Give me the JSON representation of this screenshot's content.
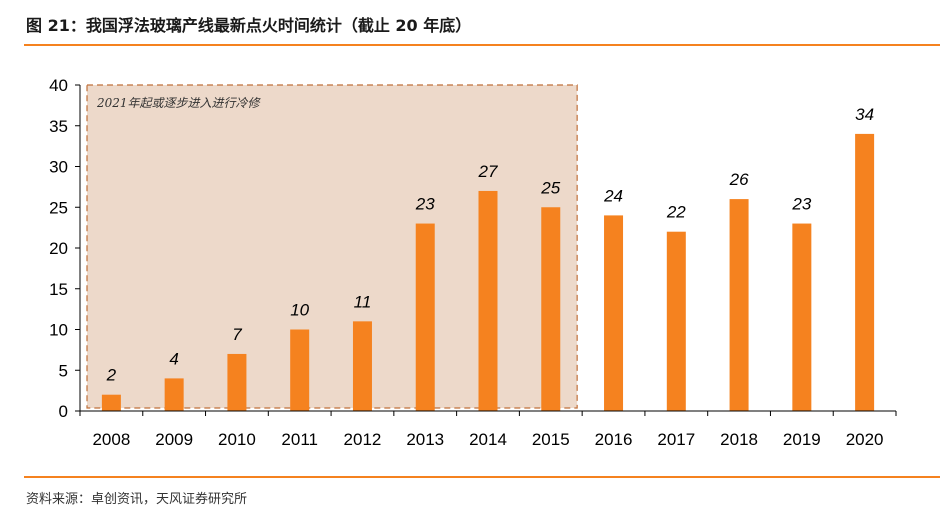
{
  "header": {
    "title": "图 21：我国浮法玻璃产线最新点火时间统计（截止 20 年底）"
  },
  "footer": {
    "source": "资料来源：卓创资讯，天风证券研究所"
  },
  "colors": {
    "bar": "#F5821F",
    "accent": "#F5821F",
    "shade_fill": "#EDD9CA",
    "shade_border": "#C0703A"
  },
  "chart_data": {
    "type": "bar",
    "categories": [
      "2008",
      "2009",
      "2010",
      "2011",
      "2012",
      "2013",
      "2014",
      "2015",
      "2016",
      "2017",
      "2018",
      "2019",
      "2020"
    ],
    "values": [
      2,
      4,
      7,
      10,
      11,
      23,
      27,
      25,
      24,
      22,
      26,
      23,
      34
    ],
    "ylim": [
      0,
      40
    ],
    "yticks": [
      0,
      5,
      10,
      15,
      20,
      25,
      30,
      35,
      40
    ],
    "title": "",
    "xlabel": "",
    "ylabel": "",
    "grid": false,
    "data_labels": true,
    "annotation": {
      "text": "2021年起或逐步进入进行冷修",
      "from_category": "2008",
      "to_category": "2015"
    }
  }
}
